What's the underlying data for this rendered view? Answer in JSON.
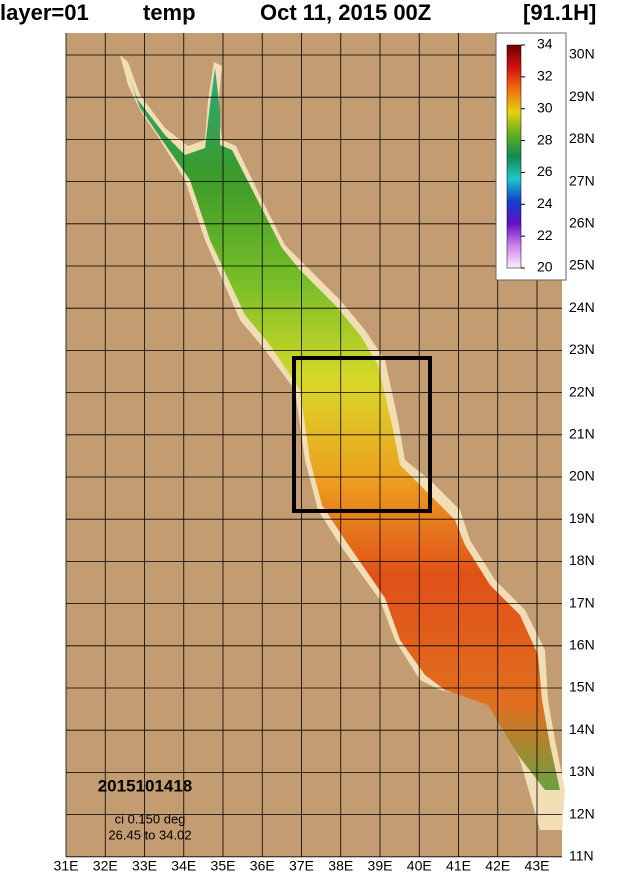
{
  "header": {
    "layer": "layer=01",
    "variable": "temp",
    "date": "Oct 11, 2015 00Z",
    "forecast": "[91.1H]"
  },
  "map": {
    "lat_ticks": [
      {
        "value": 30,
        "label": "30N"
      },
      {
        "value": 29,
        "label": "29N"
      },
      {
        "value": 28,
        "label": "28N"
      },
      {
        "value": 27,
        "label": "27N"
      },
      {
        "value": 26,
        "label": "26N"
      },
      {
        "value": 25,
        "label": "25N"
      },
      {
        "value": 24,
        "label": "24N"
      },
      {
        "value": 23,
        "label": "23N"
      },
      {
        "value": 22,
        "label": "22N"
      },
      {
        "value": 21,
        "label": "21N"
      },
      {
        "value": 20,
        "label": "20N"
      },
      {
        "value": 19,
        "label": "19N"
      },
      {
        "value": 18,
        "label": "18N"
      },
      {
        "value": 17,
        "label": "17N"
      },
      {
        "value": 16,
        "label": "16N"
      },
      {
        "value": 15,
        "label": "15N"
      },
      {
        "value": 14,
        "label": "14N"
      },
      {
        "value": 13,
        "label": "13N"
      },
      {
        "value": 12,
        "label": "12N"
      },
      {
        "value": 11,
        "label": "11N"
      }
    ],
    "lon_ticks": [
      {
        "value": 31,
        "label": "31E"
      },
      {
        "value": 32,
        "label": "32E"
      },
      {
        "value": 33,
        "label": "33E"
      },
      {
        "value": 34,
        "label": "34E"
      },
      {
        "value": 35,
        "label": "35E"
      },
      {
        "value": 36,
        "label": "36E"
      },
      {
        "value": 37,
        "label": "37E"
      },
      {
        "value": 38,
        "label": "38E"
      },
      {
        "value": 39,
        "label": "39E"
      },
      {
        "value": 40,
        "label": "40E"
      },
      {
        "value": 41,
        "label": "41E"
      },
      {
        "value": 42,
        "label": "42E"
      },
      {
        "value": 43,
        "label": "43E"
      }
    ],
    "colorbar_ticks": [
      34,
      32,
      30,
      28,
      26,
      24,
      22,
      20
    ],
    "colorbar_range": [
      20,
      34
    ]
  },
  "annotations": {
    "timestamp": "2015101418",
    "contour_interval": "ci 0.150 deg",
    "range": "26.45 to 34.02"
  }
}
